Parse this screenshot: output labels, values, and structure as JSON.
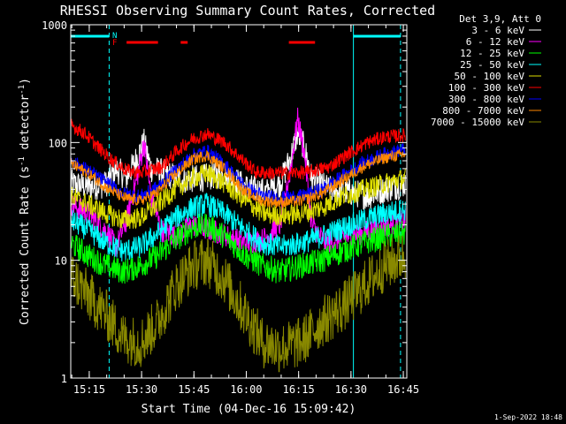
{
  "chart_data": {
    "type": "line",
    "title": "RHESSI Observing Summary Count Rates, Corrected",
    "ylabel_parts": [
      "Corrected Count Rate (s",
      "-1",
      " detector",
      "-1",
      ")"
    ],
    "xlabel": "Start Time (04-Dec-16 15:09:42)",
    "timestamp": "1-Sep-2022 18:48",
    "y_scale": "log",
    "ylim": [
      1,
      1000
    ],
    "xlim_minutes": [
      0,
      96.3
    ],
    "x_ticks": [
      {
        "label": "15:15",
        "value": 5.3
      },
      {
        "label": "15:30",
        "value": 20.3
      },
      {
        "label": "15:45",
        "value": 35.3
      },
      {
        "label": "16:00",
        "value": 50.3
      },
      {
        "label": "16:15",
        "value": 65.3
      },
      {
        "label": "16:30",
        "value": 80.3
      },
      {
        "label": "16:45",
        "value": 95.3
      }
    ],
    "y_ticks": [
      {
        "label": "1",
        "value": 1
      },
      {
        "label": "10",
        "value": 10
      },
      {
        "label": "100",
        "value": 100
      },
      {
        "label": "1000",
        "value": 1000
      }
    ],
    "legend_header": "Det 3,9, Att 0",
    "legend_position": "right",
    "series": [
      {
        "name": "3 - 6 keV",
        "color": "#ffffff",
        "points": [
          [
            0,
            45
          ],
          [
            5,
            42
          ],
          [
            10,
            44
          ],
          [
            13,
            60
          ],
          [
            16,
            50
          ],
          [
            19,
            75
          ],
          [
            21,
            100
          ],
          [
            23,
            60
          ],
          [
            27,
            55
          ],
          [
            32,
            48
          ],
          [
            38,
            50
          ],
          [
            44,
            55
          ],
          [
            50,
            42
          ],
          [
            56,
            38
          ],
          [
            60,
            45
          ],
          [
            63,
            75
          ],
          [
            65,
            120
          ],
          [
            67,
            90
          ],
          [
            69,
            50
          ],
          [
            74,
            40
          ],
          [
            80,
            38
          ],
          [
            85,
            35
          ],
          [
            90,
            40
          ],
          [
            96,
            45
          ]
        ]
      },
      {
        "name": "6 - 12 keV",
        "color": "#ff00ff",
        "points": [
          [
            0,
            30
          ],
          [
            5,
            25
          ],
          [
            10,
            18
          ],
          [
            13,
            13
          ],
          [
            16,
            22
          ],
          [
            19,
            50
          ],
          [
            21,
            100
          ],
          [
            23,
            35
          ],
          [
            26,
            18
          ],
          [
            30,
            16
          ],
          [
            35,
            20
          ],
          [
            40,
            18
          ],
          [
            45,
            16
          ],
          [
            50,
            14
          ],
          [
            55,
            15
          ],
          [
            60,
            20
          ],
          [
            63,
            60
          ],
          [
            65,
            160
          ],
          [
            67,
            80
          ],
          [
            69,
            20
          ],
          [
            73,
            14
          ],
          [
            80,
            16
          ],
          [
            86,
            18
          ],
          [
            92,
            20
          ],
          [
            96,
            22
          ]
        ]
      },
      {
        "name": "12 - 25 keV",
        "color": "#00ff00",
        "points": [
          [
            0,
            14
          ],
          [
            5,
            11
          ],
          [
            10,
            9
          ],
          [
            15,
            8
          ],
          [
            20,
            9
          ],
          [
            25,
            11
          ],
          [
            30,
            15
          ],
          [
            35,
            19
          ],
          [
            39,
            20
          ],
          [
            44,
            16
          ],
          [
            50,
            11
          ],
          [
            55,
            9
          ],
          [
            60,
            8
          ],
          [
            66,
            9
          ],
          [
            72,
            10
          ],
          [
            78,
            12
          ],
          [
            84,
            14
          ],
          [
            90,
            16
          ],
          [
            96,
            17
          ]
        ]
      },
      {
        "name": "25 - 50 keV",
        "color": "#00ffff",
        "points": [
          [
            0,
            22
          ],
          [
            5,
            18
          ],
          [
            10,
            14
          ],
          [
            15,
            12
          ],
          [
            20,
            13
          ],
          [
            25,
            17
          ],
          [
            30,
            23
          ],
          [
            35,
            28
          ],
          [
            39,
            30
          ],
          [
            44,
            25
          ],
          [
            50,
            18
          ],
          [
            55,
            14
          ],
          [
            60,
            13
          ],
          [
            66,
            14
          ],
          [
            72,
            16
          ],
          [
            78,
            19
          ],
          [
            84,
            22
          ],
          [
            90,
            25
          ],
          [
            96,
            27
          ]
        ]
      },
      {
        "name": "50 - 100 keV",
        "color": "#dddd00",
        "points": [
          [
            0,
            35
          ],
          [
            5,
            30
          ],
          [
            10,
            25
          ],
          [
            15,
            22
          ],
          [
            20,
            23
          ],
          [
            25,
            30
          ],
          [
            30,
            40
          ],
          [
            35,
            50
          ],
          [
            39,
            55
          ],
          [
            44,
            45
          ],
          [
            50,
            32
          ],
          [
            55,
            25
          ],
          [
            60,
            24
          ],
          [
            66,
            25
          ],
          [
            72,
            28
          ],
          [
            78,
            35
          ],
          [
            84,
            40
          ],
          [
            90,
            45
          ],
          [
            96,
            50
          ]
        ]
      },
      {
        "name": "100 - 300 keV",
        "color": "#ff0000",
        "points": [
          [
            0,
            140
          ],
          [
            4,
            120
          ],
          [
            8,
            90
          ],
          [
            12,
            70
          ],
          [
            16,
            58
          ],
          [
            20,
            55
          ],
          [
            26,
            62
          ],
          [
            31,
            88
          ],
          [
            35,
            108
          ],
          [
            39,
            118
          ],
          [
            44,
            100
          ],
          [
            49,
            72
          ],
          [
            53,
            56
          ],
          [
            58,
            55
          ],
          [
            63,
            55
          ],
          [
            68,
            56
          ],
          [
            74,
            62
          ],
          [
            80,
            82
          ],
          [
            85,
            100
          ],
          [
            90,
            112
          ],
          [
            96,
            115
          ]
        ]
      },
      {
        "name": "300 - 800 keV",
        "color": "#0000ff",
        "points": [
          [
            0,
            70
          ],
          [
            5,
            58
          ],
          [
            10,
            46
          ],
          [
            15,
            37
          ],
          [
            20,
            35
          ],
          [
            25,
            42
          ],
          [
            30,
            58
          ],
          [
            35,
            78
          ],
          [
            39,
            85
          ],
          [
            44,
            66
          ],
          [
            50,
            42
          ],
          [
            55,
            35
          ],
          [
            60,
            34
          ],
          [
            66,
            35
          ],
          [
            72,
            40
          ],
          [
            78,
            52
          ],
          [
            84,
            68
          ],
          [
            90,
            80
          ],
          [
            96,
            88
          ]
        ]
      },
      {
        "name": "800 - 7000 keV",
        "color": "#ff8800",
        "points": [
          [
            0,
            66
          ],
          [
            5,
            55
          ],
          [
            10,
            42
          ],
          [
            15,
            34
          ],
          [
            20,
            32
          ],
          [
            25,
            38
          ],
          [
            30,
            54
          ],
          [
            35,
            72
          ],
          [
            39,
            78
          ],
          [
            44,
            60
          ],
          [
            50,
            38
          ],
          [
            55,
            32
          ],
          [
            60,
            31
          ],
          [
            66,
            32
          ],
          [
            72,
            37
          ],
          [
            78,
            48
          ],
          [
            84,
            63
          ],
          [
            90,
            74
          ],
          [
            96,
            80
          ]
        ]
      },
      {
        "name": "7000 - 15000 keV",
        "color": "#888800",
        "points": [
          [
            0,
            7.5
          ],
          [
            5,
            5
          ],
          [
            10,
            3.5
          ],
          [
            15,
            2.2
          ],
          [
            20,
            2
          ],
          [
            25,
            3
          ],
          [
            30,
            6
          ],
          [
            35,
            9
          ],
          [
            39,
            10
          ],
          [
            44,
            7
          ],
          [
            50,
            3.5
          ],
          [
            55,
            2
          ],
          [
            60,
            1.8
          ],
          [
            66,
            2
          ],
          [
            72,
            3
          ],
          [
            78,
            4
          ],
          [
            84,
            6
          ],
          [
            90,
            9
          ],
          [
            96,
            11
          ]
        ]
      }
    ],
    "markers": {
      "orbit_lines_solid": [
        0,
        81
      ],
      "orbit_lines_dashed": [
        11,
        94.5
      ],
      "night_bars": [
        [
          0,
          11
        ],
        [
          81,
          94.5
        ]
      ],
      "flare_bars": [
        [
          16,
          25
        ],
        [
          31.5,
          33.5
        ],
        [
          62.5,
          70
        ]
      ],
      "labels": [
        {
          "text": "N",
          "value": 12.6,
          "color": "#00ffff"
        },
        {
          "text": "F",
          "value": 12.6,
          "color": "#ff0000"
        }
      ]
    }
  }
}
